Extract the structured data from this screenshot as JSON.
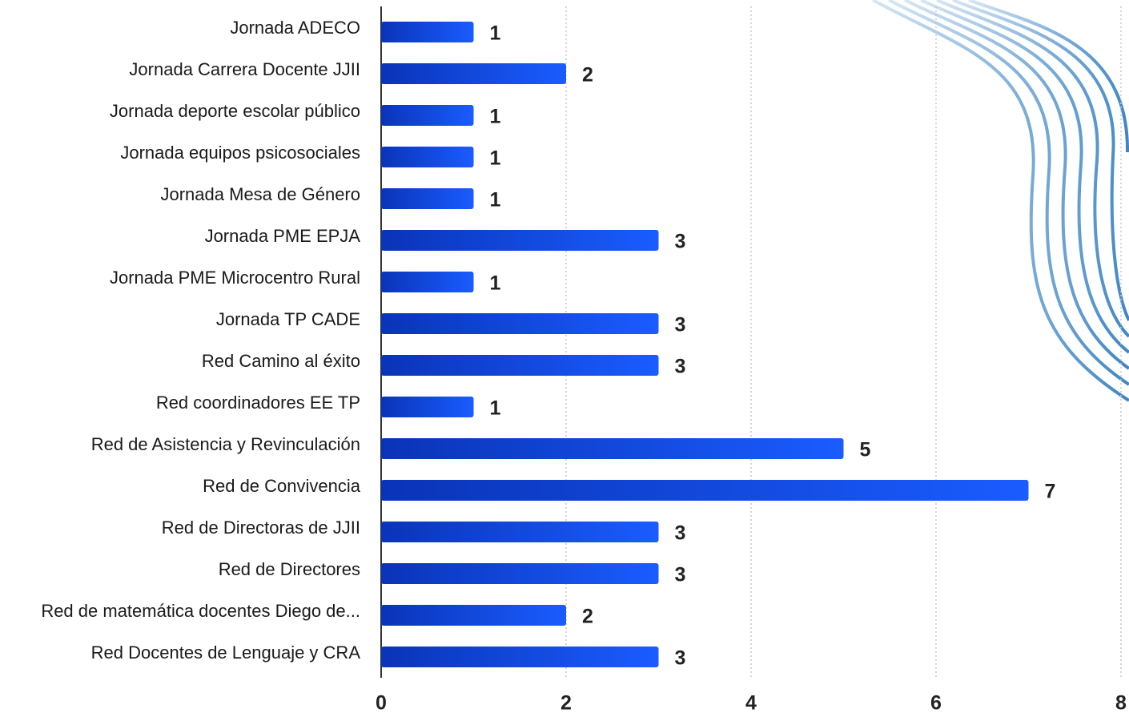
{
  "chart_data": {
    "type": "barh",
    "categories": [
      "Jornada ADECO",
      "Jornada Carrera Docente JJII",
      "Jornada deporte escolar público",
      "Jornada equipos psicosociales",
      "Jornada Mesa de Género",
      "Jornada PME EPJA",
      "Jornada PME Microcentro Rural",
      "Jornada TP CADE",
      "Red Camino al éxito",
      "Red coordinadores EE TP",
      "Red de Asistencia y Revinculación",
      "Red de Convivencia",
      "Red de Directoras de JJII",
      "Red de Directores",
      "Red de matemática docentes Diego de...",
      "Red Docentes de Lenguaje y CRA"
    ],
    "values": [
      1,
      2,
      1,
      1,
      1,
      3,
      1,
      3,
      3,
      1,
      5,
      7,
      3,
      3,
      2,
      3
    ],
    "color": "#1456f0",
    "xlim": [
      0,
      8
    ],
    "xticks": [
      0,
      2,
      4,
      6,
      8
    ],
    "grid": true
  }
}
